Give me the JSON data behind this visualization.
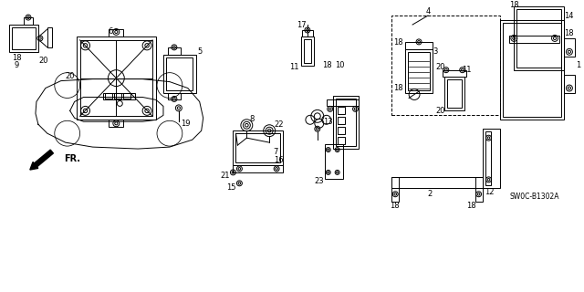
{
  "bg_color": "#ffffff",
  "line_color": "#000000",
  "diagram_code": "SW0C-B1302A",
  "figsize": [
    6.4,
    3.2
  ],
  "dpi": 100,
  "ylim": [
    0,
    320
  ],
  "xlim": [
    0,
    640
  ]
}
